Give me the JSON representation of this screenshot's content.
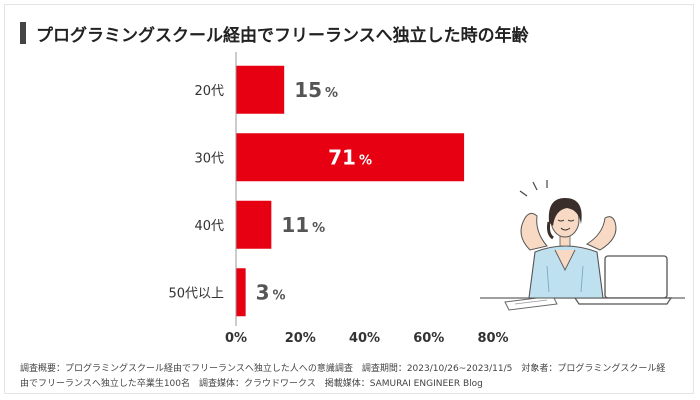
{
  "title": "プログラミングスクール経由でフリーランスへ独立した時の年齢",
  "colors": {
    "bar": "#e60012",
    "axis": "#999999",
    "title_bar": "#444444"
  },
  "chart_data": {
    "type": "bar",
    "orientation": "horizontal",
    "title": "プログラミングスクール経由でフリーランスへ独立した時の年齢",
    "categories": [
      "20代",
      "30代",
      "40代",
      "50代以上"
    ],
    "values": [
      15,
      71,
      11,
      3
    ],
    "value_suffix": "%",
    "xlim": [
      0,
      80
    ],
    "xticks": [
      "0%",
      "20%",
      "40%",
      "60%",
      "80%"
    ],
    "xlabel": "",
    "ylabel": "",
    "grid": false,
    "legend": "none"
  },
  "footer": {
    "line1": "調査概要：プログラミングスクール経由でフリーランスへ独立した人への意識調査　調査期間：2023/10/26~2023/11/5　対象者：プログラミングスクール経",
    "line2": "由でフリーランスへ独立した卒業生100名　調査媒体：クラウドワークス　掲載媒体：SAMURAI ENGINEER Blog"
  },
  "illustration": {
    "icon": "woman-stretching-at-laptop-illustration"
  }
}
